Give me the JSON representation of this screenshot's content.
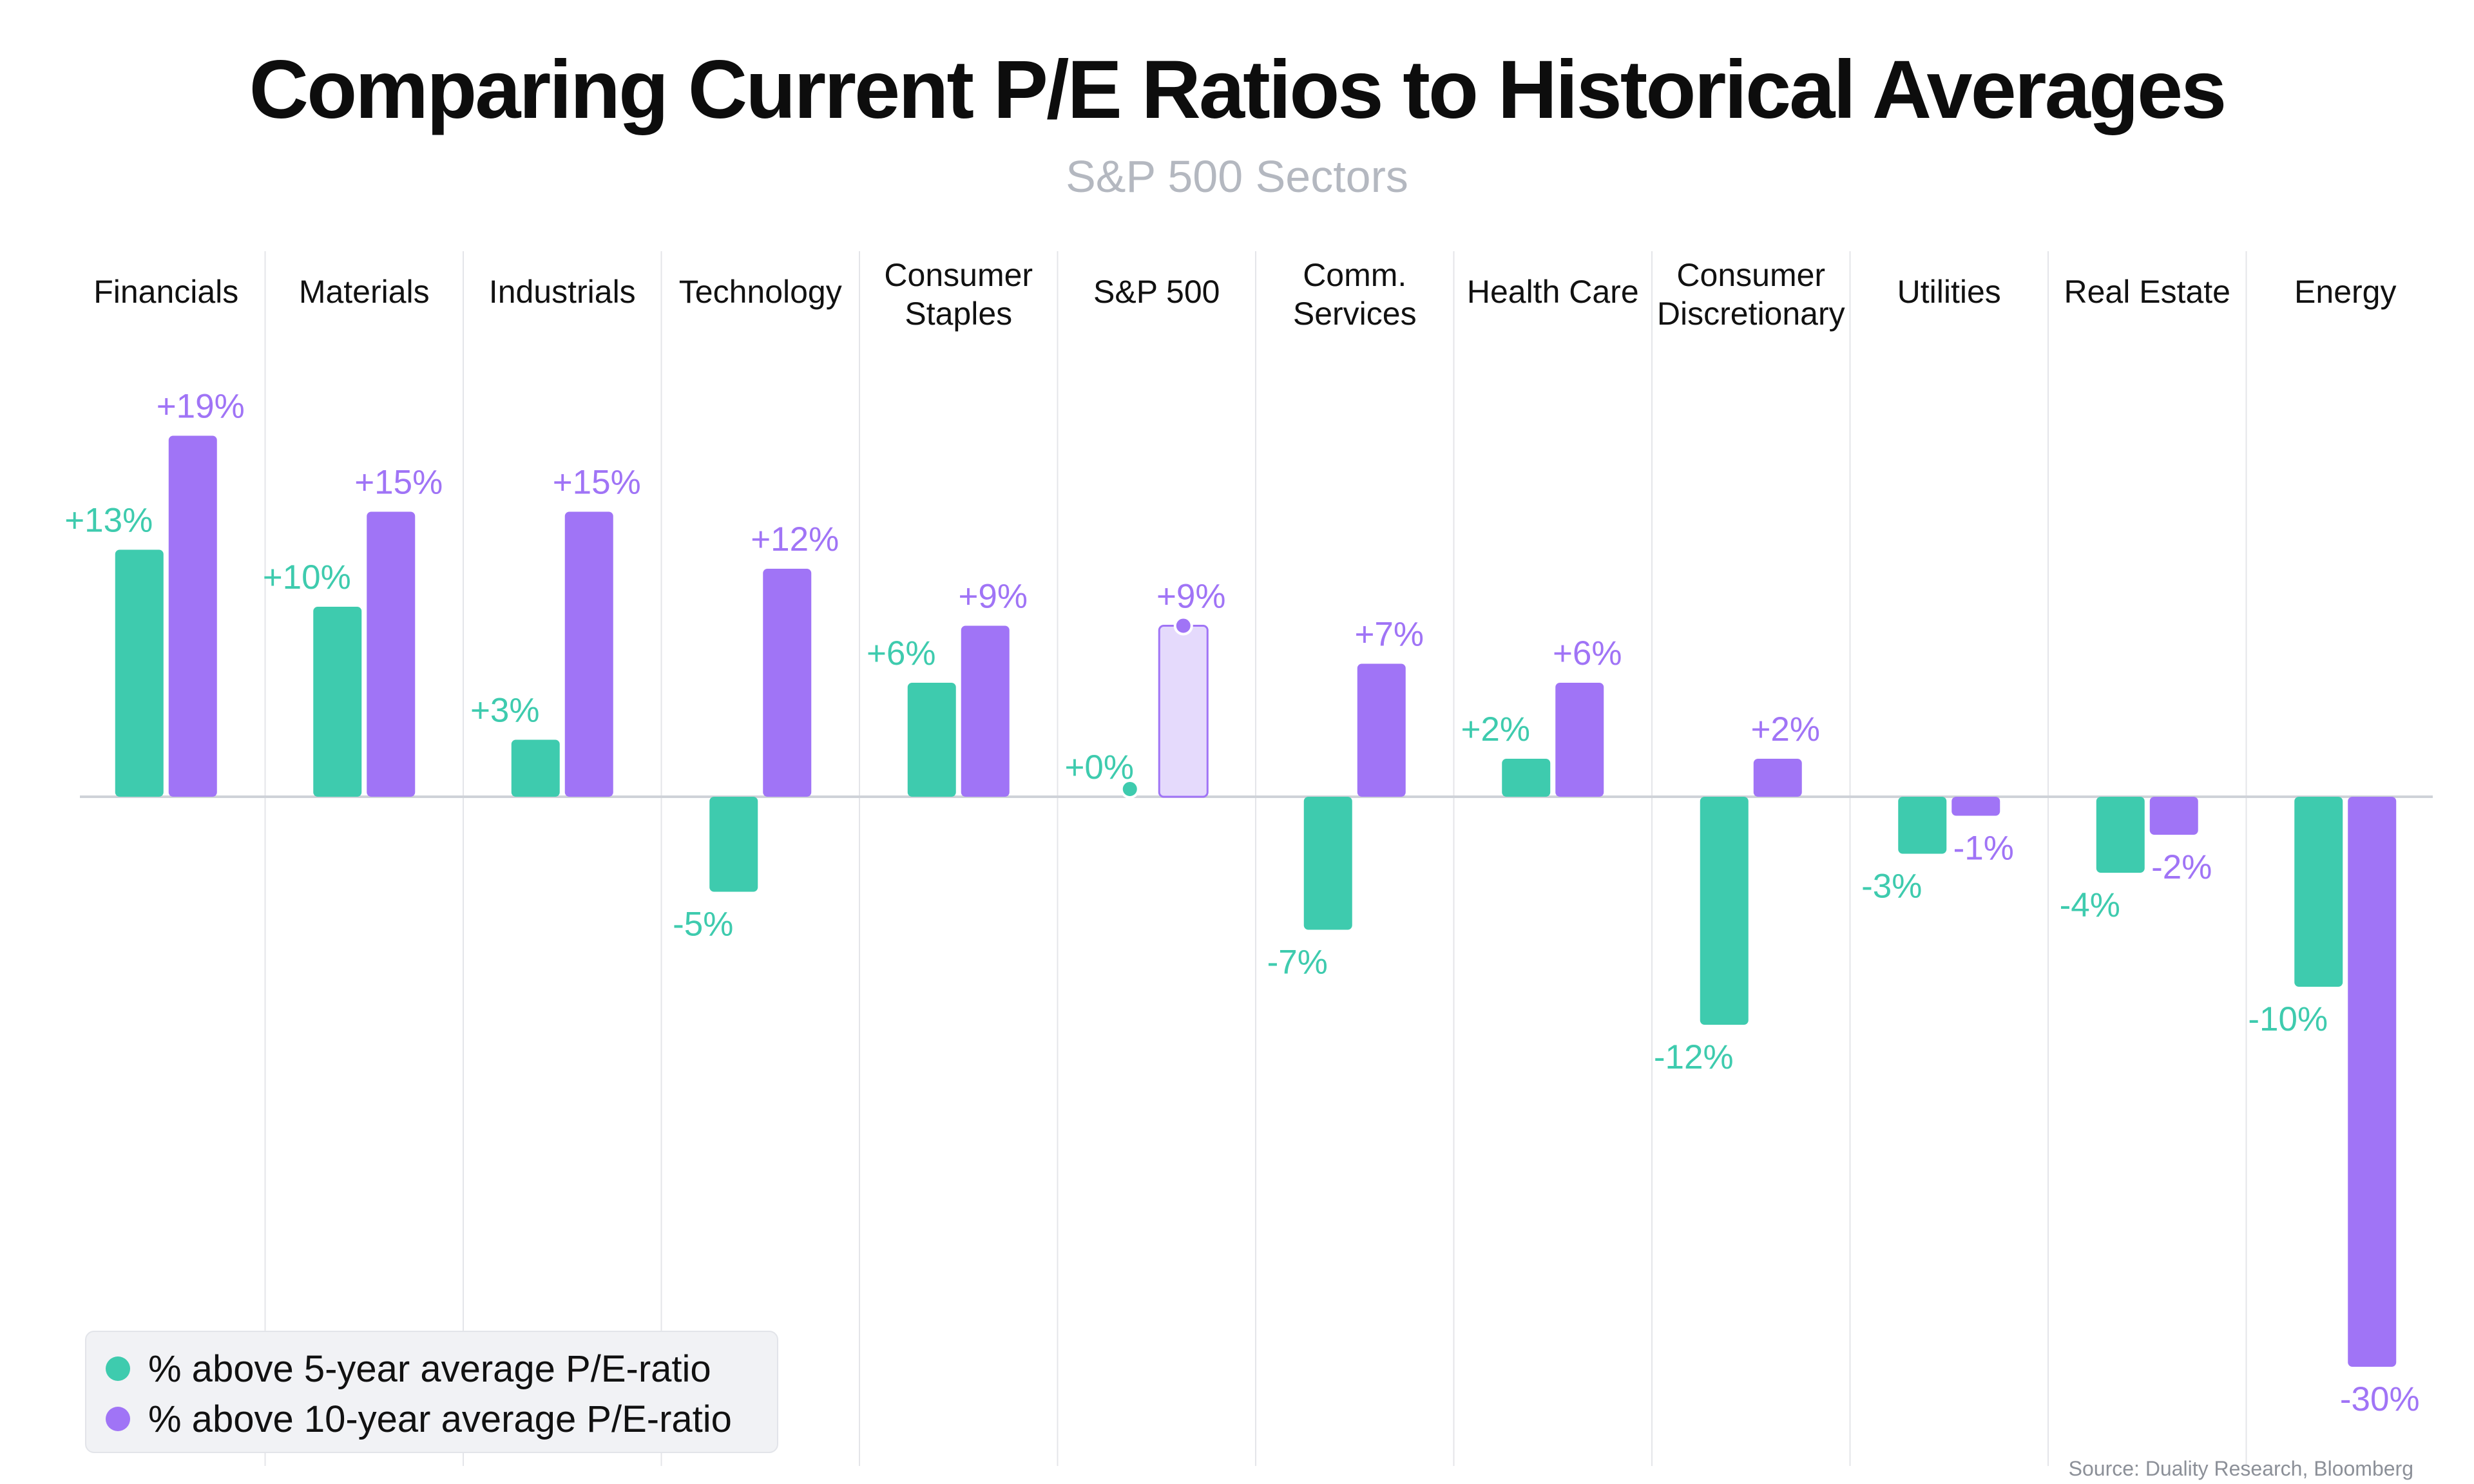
{
  "chart_data": {
    "type": "bar",
    "title": "Comparing Current P/E Ratios to Historical Averages",
    "subtitle": "S&P 500 Sectors",
    "categories": [
      [
        "Financials"
      ],
      [
        "Materials"
      ],
      [
        "Industrials"
      ],
      [
        "Technology"
      ],
      [
        "Consumer",
        "Staples"
      ],
      [
        "S&P 500"
      ],
      [
        "Comm.",
        "Services"
      ],
      [
        "Health Care"
      ],
      [
        "Consumer",
        "Discretionary"
      ],
      [
        "Utilities"
      ],
      [
        "Real Estate"
      ],
      [
        "Energy"
      ]
    ],
    "series": [
      {
        "name": "% above 5-year average P/E-ratio",
        "color": "#3ecbae",
        "values": [
          13,
          10,
          3,
          -5,
          6,
          0,
          -7,
          2,
          -12,
          -3,
          -4,
          -10
        ],
        "labels": [
          "+13%",
          "+10%",
          "+3%",
          "-5%",
          "+6%",
          "+0%",
          "-7%",
          "+2%",
          "-12%",
          "-3%",
          "-4%",
          "-10%"
        ]
      },
      {
        "name": "% above 10-year average P/E-ratio",
        "color": "#a074f6",
        "values": [
          19,
          15,
          15,
          12,
          9,
          9,
          7,
          6,
          2,
          -1,
          -2,
          -30
        ],
        "labels": [
          "+19%",
          "+15%",
          "+15%",
          "+12%",
          "+9%",
          "+9%",
          "+7%",
          "+6%",
          "+2%",
          "-1%",
          "-2%",
          "-30%"
        ]
      }
    ],
    "highlight_category": "S&P 500",
    "highlight_color": "#e5dafc",
    "ylim": [
      -31,
      21
    ],
    "grid": false,
    "legend_position": "bottom-left",
    "source": "Source: Duality Research, Bloomberg"
  },
  "colors": {
    "divider": "#e4e5e9",
    "baseline": "#cfd2d8",
    "title": "#0d0d0d",
    "subtitle": "#b4b8c0"
  }
}
